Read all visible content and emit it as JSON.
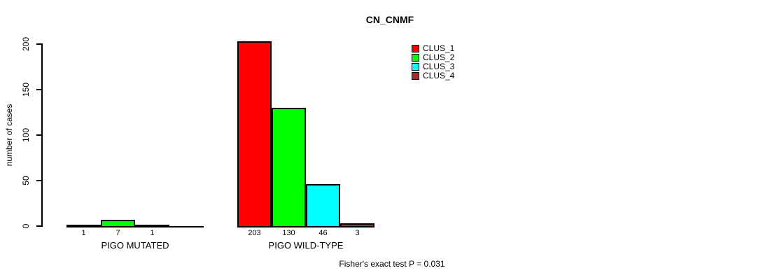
{
  "chart_data": {
    "type": "bar",
    "title": "CN_CNMF",
    "ylabel": "number of cases",
    "xlabel": "",
    "annotation": "Fisher's exact test P = 0.031",
    "ylim": [
      0,
      200
    ],
    "yticks": [
      0,
      50,
      100,
      150,
      200
    ],
    "grid": false,
    "legend_position": "top-right",
    "series": [
      {
        "name": "CLUS_1",
        "color": "#ff0000"
      },
      {
        "name": "CLUS_2",
        "color": "#00ff00"
      },
      {
        "name": "CLUS_3",
        "color": "#00ffff"
      },
      {
        "name": "CLUS_4",
        "color": "#a52a2a"
      }
    ],
    "groups": [
      {
        "label": "PIGO MUTATED",
        "values": [
          1,
          7,
          1,
          0
        ],
        "value_labels": [
          "1",
          "7",
          "1",
          ""
        ]
      },
      {
        "label": "PIGO WILD-TYPE",
        "values": [
          203,
          130,
          46,
          3
        ],
        "value_labels": [
          "203",
          "130",
          "46",
          "3"
        ]
      }
    ]
  }
}
